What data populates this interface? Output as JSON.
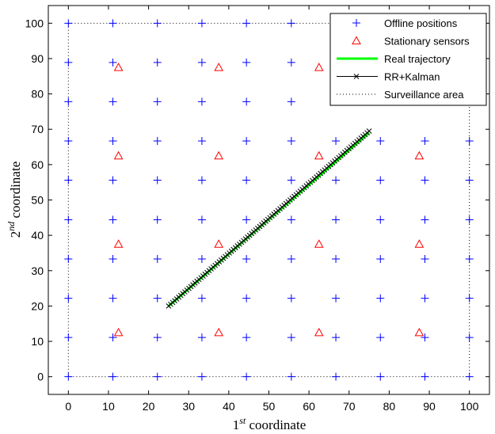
{
  "chart_data": {
    "type": "scatter",
    "xlim": [
      -5,
      105
    ],
    "ylim": [
      -5,
      105
    ],
    "xticks": [
      0,
      10,
      20,
      30,
      40,
      50,
      60,
      70,
      80,
      90,
      100
    ],
    "yticks": [
      0,
      10,
      20,
      30,
      40,
      50,
      60,
      70,
      80,
      90,
      100
    ],
    "xlabel": {
      "base": "1",
      "sup": "st",
      "rest": " coordinate"
    },
    "ylabel": {
      "base": "2",
      "sup": "nd",
      "rest": " coordinate"
    },
    "grid": false,
    "legend_position": "top-right",
    "series": [
      {
        "name": "Offline positions",
        "marker": "plus",
        "color": "#0000ff",
        "grid_values": [
          0,
          11.1,
          22.2,
          33.3,
          44.4,
          55.6,
          66.7,
          77.8,
          88.9,
          100
        ]
      },
      {
        "name": "Stationary sensors",
        "marker": "triangle",
        "color": "#ff0000",
        "grid_values": [
          12.5,
          37.5,
          62.5,
          87.5
        ]
      },
      {
        "name": "Real trajectory",
        "marker": "line",
        "color": "#00ff00",
        "points": [
          [
            25,
            20
          ],
          [
            75,
            69
          ]
        ]
      },
      {
        "name": "RR+Kalman",
        "marker": "x-line",
        "color": "#000000",
        "count": 100,
        "start": [
          25,
          20
        ],
        "end": [
          75,
          69.5
        ]
      },
      {
        "name": "Surveillance area",
        "marker": "dotted",
        "color": "#000000",
        "rect": [
          0,
          0,
          100,
          100
        ]
      }
    ]
  }
}
